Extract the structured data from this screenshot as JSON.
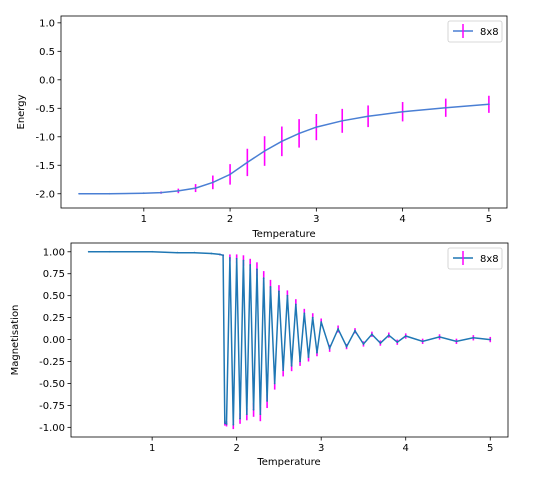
{
  "chart_data": [
    {
      "type": "line",
      "xlabel": "Temperature",
      "ylabel": "Energy",
      "xlim": [
        0.04,
        5.21
      ],
      "ylim": [
        -2.25,
        1.12
      ],
      "xticks": [
        1,
        2,
        3,
        4,
        5
      ],
      "yticks": [
        -2.0,
        -1.5,
        -1.0,
        -0.5,
        0.0,
        0.5,
        1.0
      ],
      "ytick_labels": [
        "-2.0",
        "-1.5",
        "-1.0",
        "-0.5",
        "0.0",
        "0.5",
        "1.0"
      ],
      "grid": false,
      "legend_position": "top-right",
      "series": [
        {
          "name": "8x8",
          "line_color": "#4a7fd4",
          "errorbar_color": "#ff00ff",
          "x": [
            0.25,
            0.6,
            1.0,
            1.2,
            1.4,
            1.6,
            1.8,
            2.0,
            2.2,
            2.4,
            2.6,
            2.8,
            3.0,
            3.3,
            3.6,
            4.0,
            4.5,
            5.0
          ],
          "y": [
            -2.0,
            -2.0,
            -1.99,
            -1.98,
            -1.95,
            -1.9,
            -1.8,
            -1.66,
            -1.45,
            -1.25,
            -1.08,
            -0.94,
            -0.83,
            -0.72,
            -0.64,
            -0.56,
            -0.49,
            -0.43
          ],
          "yerr": [
            0.0,
            0.0,
            0.0,
            0.02,
            0.04,
            0.07,
            0.12,
            0.18,
            0.24,
            0.26,
            0.26,
            0.25,
            0.23,
            0.21,
            0.19,
            0.17,
            0.16,
            0.15
          ]
        }
      ]
    },
    {
      "type": "line",
      "xlabel": "Temperature",
      "ylabel": "Magnetisation",
      "xlim": [
        0.04,
        5.21
      ],
      "ylim": [
        -1.11,
        1.1
      ],
      "xticks": [
        1,
        2,
        3,
        4,
        5
      ],
      "yticks": [
        -1.0,
        -0.75,
        -0.5,
        -0.25,
        0.0,
        0.25,
        0.5,
        0.75,
        1.0
      ],
      "ytick_labels": [
        "-1.00",
        "-0.75",
        "-0.50",
        "-0.25",
        "0.00",
        "0.25",
        "0.50",
        "0.75",
        "1.00"
      ],
      "grid": false,
      "legend_position": "top-right",
      "series": [
        {
          "name": "8x8",
          "line_color": "#1f77b4",
          "errorbar_color": "#ff00ff",
          "x": [
            0.25,
            0.5,
            1.0,
            1.3,
            1.5,
            1.7,
            1.8,
            1.84,
            1.86,
            1.88,
            1.92,
            1.96,
            2.0,
            2.04,
            2.08,
            2.12,
            2.16,
            2.2,
            2.24,
            2.28,
            2.32,
            2.36,
            2.4,
            2.45,
            2.5,
            2.55,
            2.6,
            2.65,
            2.7,
            2.75,
            2.8,
            2.85,
            2.9,
            2.95,
            3.0,
            3.1,
            3.2,
            3.3,
            3.4,
            3.5,
            3.6,
            3.7,
            3.8,
            3.9,
            4.0,
            4.2,
            4.4,
            4.6,
            4.8,
            5.0
          ],
          "y": [
            1.0,
            1.0,
            1.0,
            0.99,
            0.99,
            0.98,
            0.97,
            0.96,
            -0.95,
            -0.96,
            0.93,
            -0.97,
            0.92,
            -0.9,
            0.9,
            -0.85,
            0.85,
            -0.8,
            0.8,
            -0.85,
            0.7,
            -0.7,
            0.6,
            -0.5,
            0.55,
            -0.35,
            0.5,
            -0.3,
            0.4,
            -0.25,
            0.3,
            -0.2,
            0.25,
            -0.15,
            0.2,
            -0.1,
            0.12,
            -0.08,
            0.1,
            -0.05,
            0.06,
            -0.04,
            0.05,
            -0.03,
            0.04,
            -0.02,
            0.03,
            -0.02,
            0.02,
            0.0
          ],
          "yerr": [
            0.0,
            0.0,
            0.0,
            0.0,
            0.0,
            0.0,
            0.01,
            0.01,
            0.03,
            0.03,
            0.04,
            0.05,
            0.05,
            0.06,
            0.06,
            0.07,
            0.07,
            0.08,
            0.08,
            0.08,
            0.08,
            0.08,
            0.08,
            0.07,
            0.07,
            0.07,
            0.06,
            0.06,
            0.06,
            0.05,
            0.05,
            0.05,
            0.05,
            0.04,
            0.04,
            0.04,
            0.04,
            0.03,
            0.03,
            0.03,
            0.03,
            0.03,
            0.03,
            0.03,
            0.03,
            0.03,
            0.03,
            0.03,
            0.03,
            0.03
          ]
        }
      ]
    }
  ]
}
